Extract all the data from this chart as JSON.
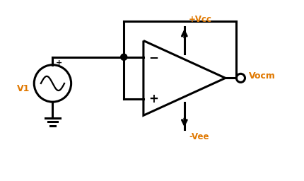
{
  "fig_width": 4.31,
  "fig_height": 2.56,
  "dpi": 100,
  "bg_color": "#ffffff",
  "line_color": "#000000",
  "label_color": "#e07800",
  "line_width": 2.2,
  "vcc_label": "+Vcc",
  "vee_label": "-Vee",
  "vocm_label": "Vocm",
  "v1_label": "V1",
  "plus_label": "+",
  "opamp_plus_label": "+",
  "opamp_minus_label": "−",
  "xlim": [
    0,
    8.5
  ],
  "ylim": [
    0,
    5
  ]
}
